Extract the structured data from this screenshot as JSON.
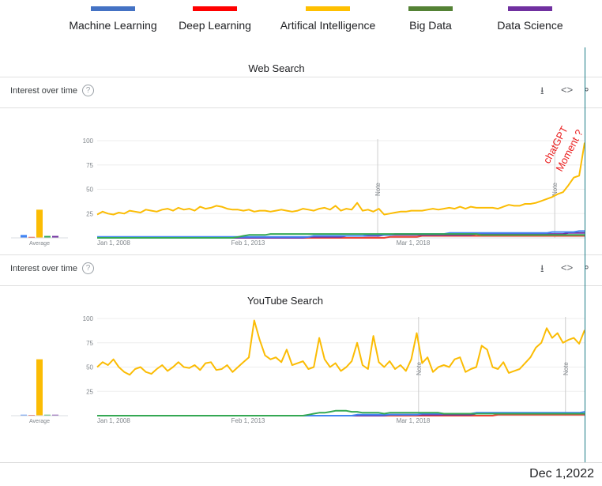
{
  "legend": [
    {
      "label": "Machine Learning",
      "color": "#4472c4"
    },
    {
      "label": "Deep Learning",
      "color": "#ff0000"
    },
    {
      "label": "Artifical Intelligence",
      "color": "#ffc000"
    },
    {
      "label": "Big Data",
      "color": "#548235"
    },
    {
      "label": "Data Science",
      "color": "#7030a0"
    }
  ],
  "panels": {
    "web": {
      "title": "Web Search",
      "toolbar_label": "Interest over time"
    },
    "youtube": {
      "title": "YouTube Search",
      "toolbar_label": "Interest over time"
    }
  },
  "toolbar_icons": [
    "download-icon",
    "embed-icon",
    "share-icon"
  ],
  "help_glyph": "?",
  "annotation": "chatGPT Moment ?",
  "date_stamp": "Dec 1,2022",
  "chart_data": [
    {
      "type": "line",
      "title": "Web Search",
      "x_ticks": [
        "Jan 1, 2008",
        "Feb 1, 2013",
        "Mar 1, 2018"
      ],
      "ylim": [
        0,
        100
      ],
      "yticks": [
        25,
        50,
        75,
        100
      ],
      "avg_label": "Average",
      "notes": [
        {
          "label": "Note",
          "date": "2016-08"
        },
        {
          "label": "Note",
          "date": "2022-01"
        }
      ],
      "averages": {
        "Machine Learning": 3,
        "Deep Learning": 1,
        "Artifical Intelligence": 29,
        "Big Data": 2,
        "Data Science": 2
      },
      "series": [
        {
          "name": "Artifical Intelligence",
          "color": "#fbbc04",
          "values": [
            24,
            27,
            25,
            24,
            26,
            25,
            28,
            27,
            26,
            29,
            28,
            27,
            29,
            30,
            28,
            31,
            29,
            30,
            28,
            32,
            30,
            31,
            33,
            32,
            30,
            29,
            29,
            28,
            29,
            27,
            28,
            28,
            27,
            28,
            29,
            28,
            27,
            28,
            30,
            29,
            28,
            30,
            31,
            29,
            33,
            28,
            30,
            29,
            36,
            28,
            29,
            27,
            30,
            24,
            25,
            26,
            27,
            27,
            28,
            28,
            28,
            29,
            30,
            29,
            30,
            31,
            30,
            32,
            30,
            32,
            31,
            31,
            31,
            31,
            30,
            32,
            34,
            33,
            33,
            35,
            35,
            36,
            38,
            40,
            42,
            45,
            47,
            54,
            62,
            64,
            98
          ]
        },
        {
          "name": "Big Data",
          "color": "#34a853",
          "values": [
            0,
            0,
            0,
            0,
            0,
            0,
            0,
            0,
            0,
            0,
            0,
            0,
            0,
            0,
            0,
            0,
            0,
            0,
            0,
            0,
            0,
            0,
            0,
            0,
            0,
            0,
            1,
            2,
            3,
            3,
            3,
            3,
            4,
            4,
            4,
            4,
            4,
            4,
            4,
            4,
            4,
            4,
            4,
            4,
            4,
            4,
            4,
            4,
            4,
            4,
            4,
            4,
            4,
            4,
            4,
            4,
            4,
            4,
            4,
            4,
            4,
            4,
            4,
            4,
            4,
            4,
            4,
            4,
            4,
            4,
            4,
            3,
            3,
            3,
            3,
            3,
            3,
            3,
            3,
            3,
            3,
            3,
            3,
            3,
            3,
            3,
            3,
            3,
            3,
            3,
            3
          ]
        },
        {
          "name": "Machine Learning",
          "color": "#4285f4",
          "values": [
            1,
            1,
            1,
            1,
            1,
            1,
            1,
            1,
            1,
            1,
            1,
            1,
            1,
            1,
            1,
            1,
            1,
            1,
            1,
            1,
            1,
            1,
            1,
            1,
            1,
            1,
            1,
            1,
            1,
            1,
            1,
            1,
            1,
            1,
            1,
            1,
            1,
            1,
            1,
            1,
            2,
            2,
            2,
            2,
            2,
            2,
            2,
            2,
            2,
            2,
            3,
            3,
            3,
            3,
            3,
            4,
            4,
            4,
            4,
            4,
            4,
            4,
            4,
            4,
            4,
            5,
            5,
            5,
            5,
            5,
            5,
            5,
            5,
            5,
            5,
            5,
            5,
            5,
            5,
            5,
            5,
            5,
            5,
            5,
            6,
            6,
            6,
            6,
            6,
            7,
            7
          ]
        },
        {
          "name": "Data Science",
          "color": "#7030a0",
          "values": [
            0,
            0,
            0,
            0,
            0,
            0,
            0,
            0,
            0,
            0,
            0,
            0,
            0,
            0,
            0,
            0,
            0,
            0,
            0,
            0,
            0,
            0,
            0,
            0,
            0,
            0,
            0,
            0,
            0,
            0,
            0,
            0,
            0,
            0,
            0,
            0,
            0,
            0,
            0,
            1,
            1,
            1,
            1,
            1,
            1,
            1,
            2,
            2,
            2,
            2,
            2,
            2,
            2,
            3,
            3,
            3,
            3,
            3,
            3,
            3,
            3,
            3,
            3,
            3,
            3,
            3,
            3,
            3,
            3,
            3,
            4,
            4,
            4,
            4,
            4,
            4,
            4,
            4,
            4,
            4,
            4,
            4,
            4,
            4,
            4,
            4,
            4,
            5,
            5,
            5,
            5
          ]
        },
        {
          "name": "Deep Learning",
          "color": "#ea4335",
          "values": [
            0,
            0,
            0,
            0,
            0,
            0,
            0,
            0,
            0,
            0,
            0,
            0,
            0,
            0,
            0,
            0,
            0,
            0,
            0,
            0,
            0,
            0,
            0,
            0,
            0,
            0,
            0,
            0,
            0,
            0,
            0,
            0,
            0,
            0,
            0,
            0,
            0,
            0,
            0,
            0,
            0,
            0,
            0,
            0,
            0,
            0,
            0,
            0,
            0,
            0,
            0,
            0,
            0,
            0,
            1,
            1,
            1,
            1,
            1,
            1,
            2,
            2,
            2,
            2,
            2,
            2,
            2,
            2,
            2,
            2,
            2,
            2,
            2,
            2,
            2,
            2,
            2,
            2,
            2,
            2,
            2,
            2,
            2,
            2,
            2,
            2,
            2,
            2,
            2,
            2,
            2
          ]
        }
      ]
    },
    {
      "type": "line",
      "title": "YouTube Search",
      "x_ticks": [
        "Jan 1, 2008",
        "Feb 1, 2013",
        "Mar 1, 2018"
      ],
      "ylim": [
        0,
        100
      ],
      "yticks": [
        25,
        50,
        75,
        100
      ],
      "avg_label": "Average",
      "notes": [
        {
          "label": "Note",
          "date": "2017-11"
        },
        {
          "label": "Note",
          "date": "2022-05"
        }
      ],
      "averages": {
        "Machine Learning": 1,
        "Deep Learning": 0,
        "Artifical Intelligence": 58,
        "Big Data": 1,
        "Data Science": 1
      },
      "series": [
        {
          "name": "Artifical Intelligence",
          "color": "#fbbc04",
          "values": [
            50,
            55,
            52,
            58,
            50,
            45,
            42,
            48,
            50,
            45,
            43,
            48,
            52,
            46,
            50,
            55,
            50,
            49,
            52,
            47,
            54,
            55,
            47,
            48,
            52,
            45,
            50,
            55,
            60,
            98,
            78,
            62,
            58,
            60,
            55,
            68,
            52,
            54,
            56,
            48,
            50,
            80,
            58,
            50,
            54,
            46,
            50,
            56,
            75,
            52,
            48,
            82,
            55,
            50,
            56,
            48,
            52,
            46,
            58,
            85,
            54,
            60,
            45,
            50,
            52,
            50,
            58,
            60,
            45,
            48,
            50,
            72,
            68,
            50,
            48,
            55,
            44,
            46,
            48,
            54,
            60,
            70,
            75,
            90,
            80,
            85,
            75,
            78,
            80,
            74,
            88
          ]
        },
        {
          "name": "Big Data",
          "color": "#34a853",
          "values": [
            0,
            0,
            0,
            0,
            0,
            0,
            0,
            0,
            0,
            0,
            0,
            0,
            0,
            0,
            0,
            0,
            0,
            0,
            0,
            0,
            0,
            0,
            0,
            0,
            0,
            0,
            0,
            0,
            0,
            0,
            0,
            0,
            0,
            0,
            0,
            0,
            0,
            0,
            0,
            1,
            2,
            3,
            3,
            4,
            5,
            5,
            5,
            4,
            4,
            3,
            3,
            3,
            3,
            2,
            3,
            3,
            3,
            3,
            3,
            3,
            3,
            3,
            3,
            3,
            2,
            2,
            2,
            2,
            2,
            2,
            2,
            2,
            2,
            2,
            2,
            2,
            2,
            2,
            2,
            2,
            2,
            2,
            2,
            2,
            2,
            2,
            2,
            2,
            2,
            2,
            2
          ]
        },
        {
          "name": "Machine Learning",
          "color": "#4285f4",
          "values": [
            0,
            0,
            0,
            0,
            0,
            0,
            0,
            0,
            0,
            0,
            0,
            0,
            0,
            0,
            0,
            0,
            0,
            0,
            0,
            0,
            0,
            0,
            0,
            0,
            0,
            0,
            0,
            0,
            0,
            0,
            0,
            0,
            0,
            0,
            0,
            0,
            0,
            0,
            0,
            0,
            0,
            0,
            0,
            0,
            0,
            0,
            0,
            0,
            1,
            1,
            1,
            1,
            1,
            1,
            1,
            1,
            1,
            1,
            1,
            1,
            2,
            2,
            2,
            2,
            2,
            2,
            2,
            2,
            2,
            2,
            3,
            3,
            3,
            3,
            3,
            3,
            3,
            3,
            3,
            3,
            3,
            3,
            3,
            3,
            3,
            3,
            3,
            3,
            3,
            3,
            4
          ]
        },
        {
          "name": "Data Science",
          "color": "#7030a0",
          "values": [
            0,
            0,
            0,
            0,
            0,
            0,
            0,
            0,
            0,
            0,
            0,
            0,
            0,
            0,
            0,
            0,
            0,
            0,
            0,
            0,
            0,
            0,
            0,
            0,
            0,
            0,
            0,
            0,
            0,
            0,
            0,
            0,
            0,
            0,
            0,
            0,
            0,
            0,
            0,
            0,
            0,
            0,
            0,
            0,
            0,
            0,
            0,
            0,
            0,
            0,
            0,
            0,
            0,
            0,
            1,
            1,
            1,
            1,
            1,
            1,
            1,
            1,
            1,
            1,
            1,
            1,
            1,
            1,
            1,
            1,
            2,
            2,
            2,
            2,
            2,
            2,
            2,
            2,
            2,
            2,
            2,
            2,
            2,
            2,
            2,
            2,
            2,
            2,
            2,
            2,
            2
          ]
        },
        {
          "name": "Deep Learning",
          "color": "#ea4335",
          "values": [
            0,
            0,
            0,
            0,
            0,
            0,
            0,
            0,
            0,
            0,
            0,
            0,
            0,
            0,
            0,
            0,
            0,
            0,
            0,
            0,
            0,
            0,
            0,
            0,
            0,
            0,
            0,
            0,
            0,
            0,
            0,
            0,
            0,
            0,
            0,
            0,
            0,
            0,
            0,
            0,
            0,
            0,
            0,
            0,
            0,
            0,
            0,
            0,
            0,
            0,
            0,
            0,
            0,
            0,
            0,
            0,
            0,
            0,
            0,
            0,
            0,
            0,
            0,
            0,
            0,
            0,
            0,
            0,
            0,
            0,
            0,
            0,
            0,
            0,
            1,
            1,
            1,
            1,
            1,
            1,
            1,
            1,
            1,
            1,
            1,
            1,
            1,
            1,
            1,
            1,
            1
          ]
        }
      ]
    }
  ]
}
